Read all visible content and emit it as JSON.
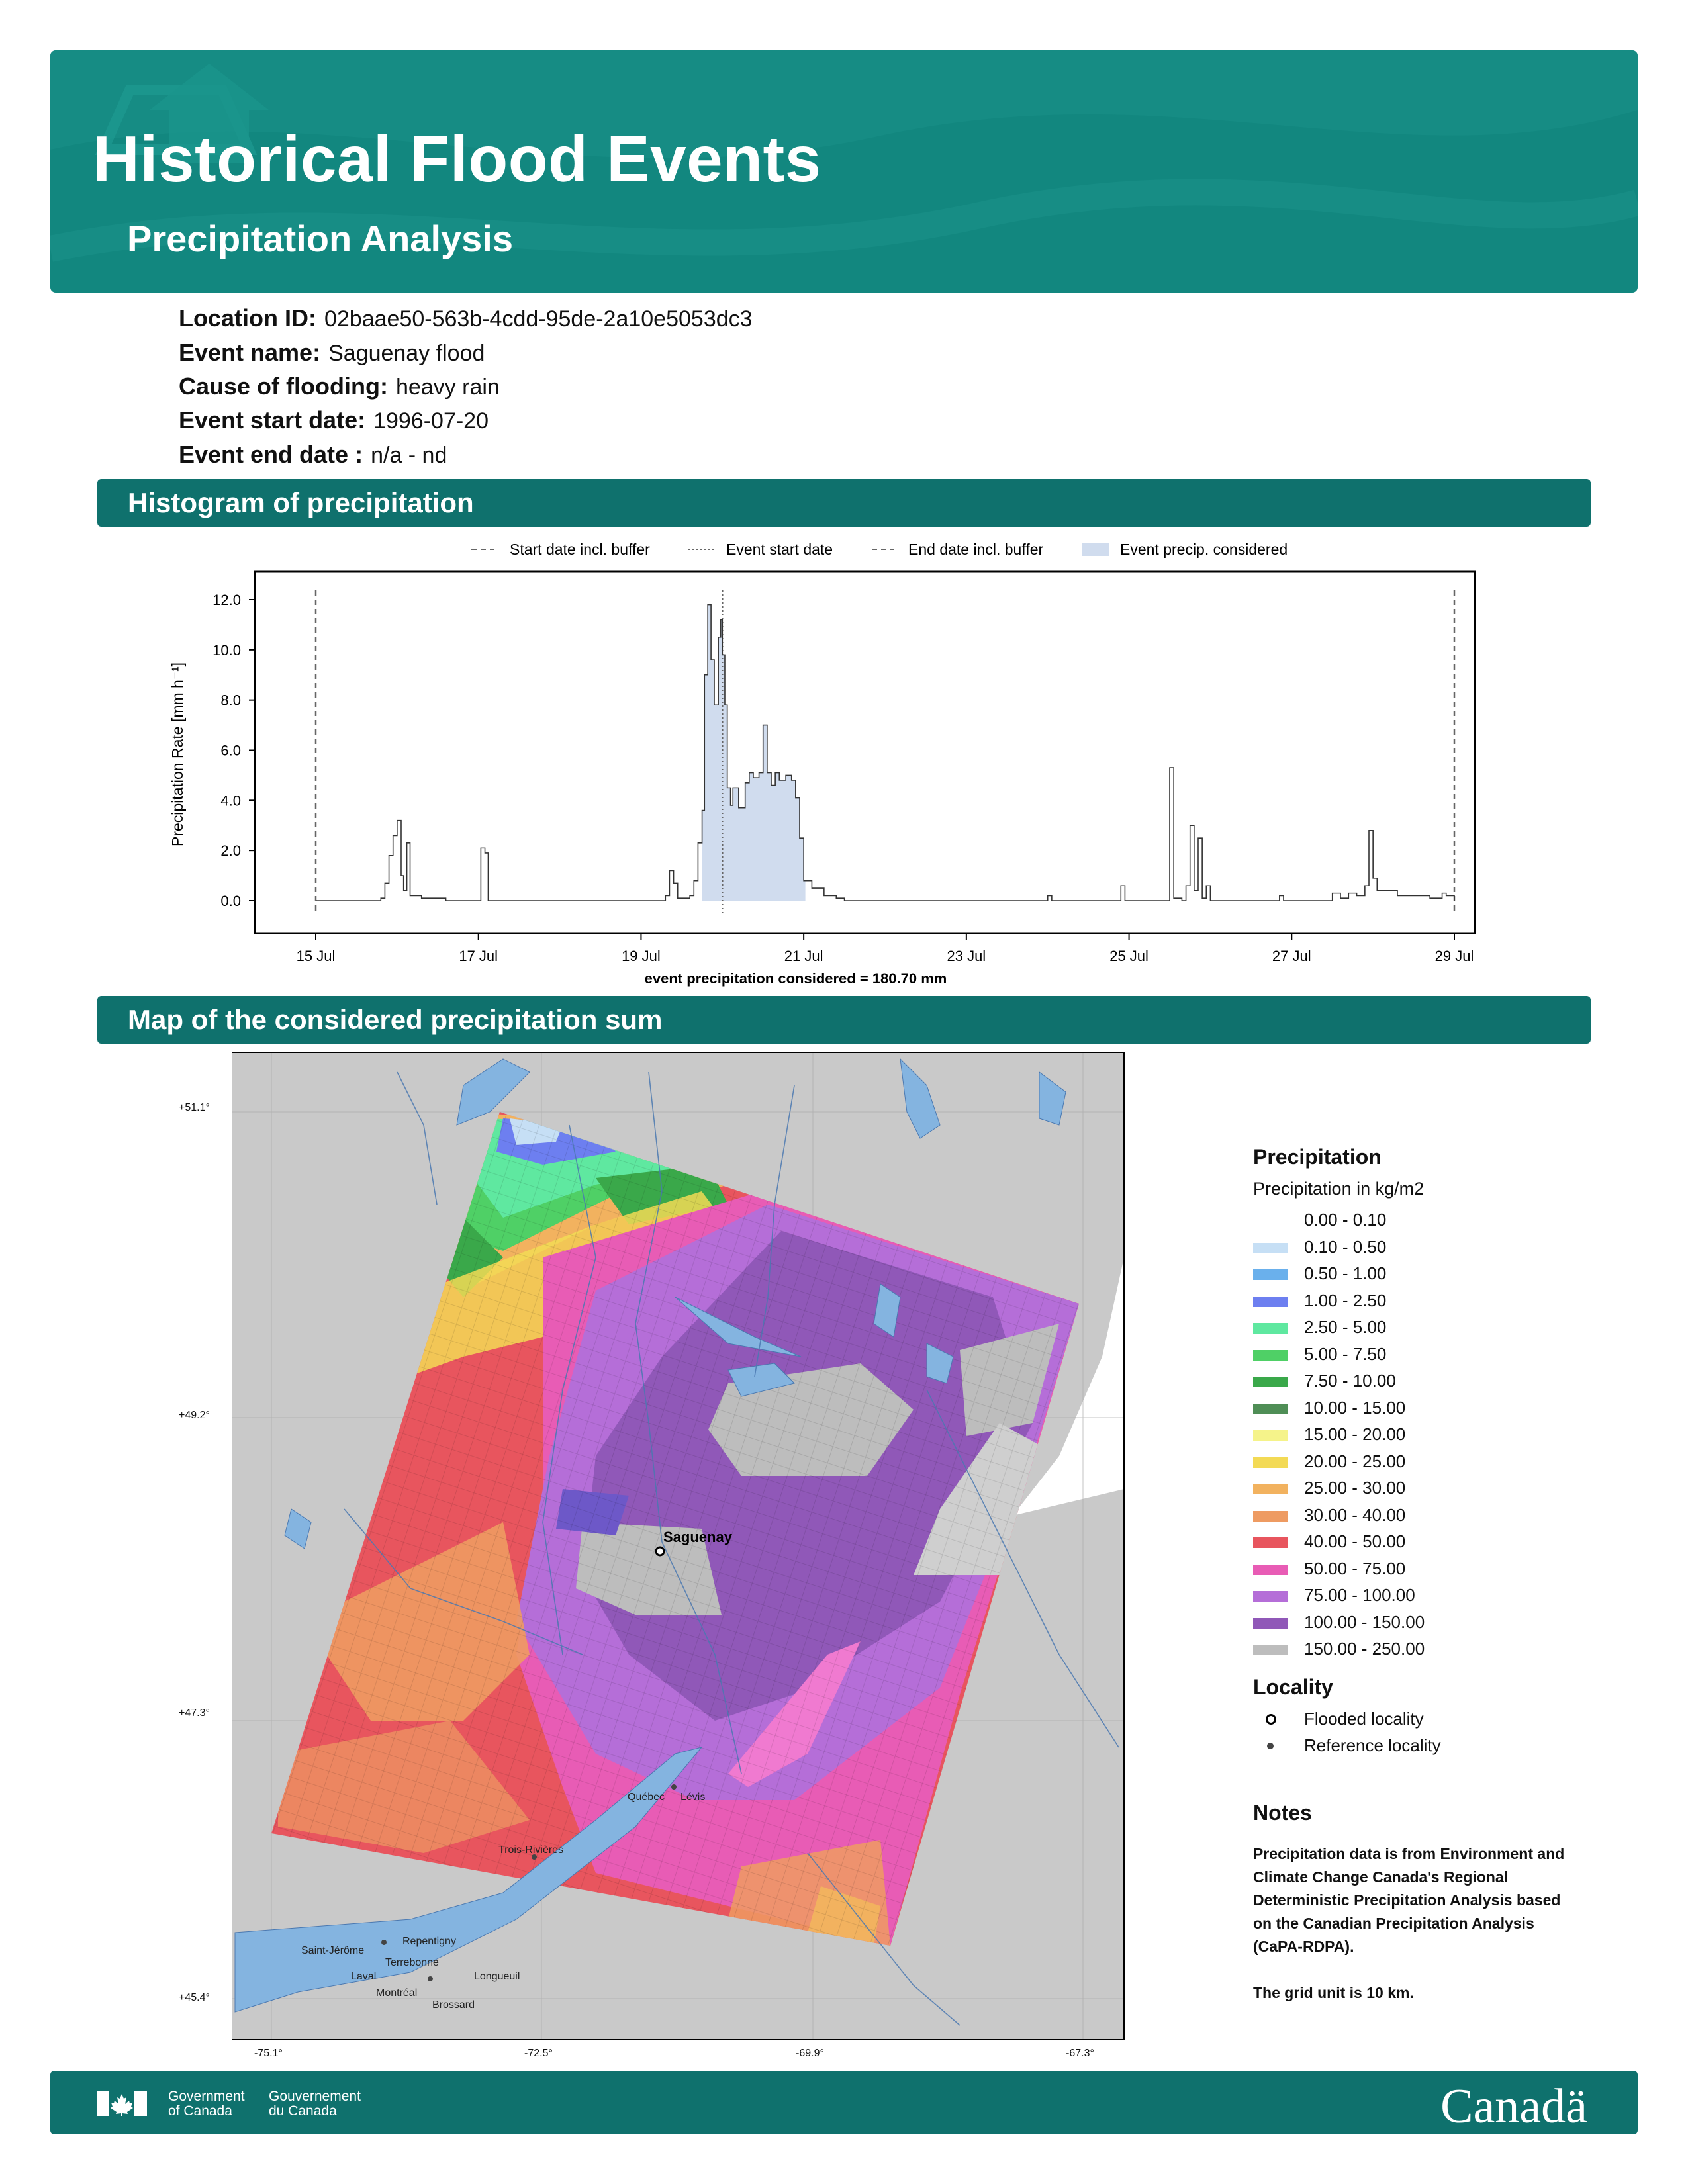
{
  "header": {
    "title": "Historical Flood Events",
    "subtitle": "Precipitation Analysis"
  },
  "info": [
    {
      "label": "Location ID:",
      "value": "02baae50-563b-4cdd-95de-2a10e5053dc3"
    },
    {
      "label": "Event name:",
      "value": "Saguenay flood"
    },
    {
      "label": "Cause of flooding:",
      "value": "heavy rain"
    },
    {
      "label": "Event start date:",
      "value": "1996-07-20"
    },
    {
      "label": "Event end date :",
      "value": "n/a - nd"
    }
  ],
  "sections": {
    "histogram": "Histogram of precipitation",
    "map": "Map of the considered precipitation sum"
  },
  "chart_data": {
    "type": "area",
    "ylabel": "Precipitation Rate [mm h⁻¹]",
    "xlabel": "event precipitation considered = 180.70 mm",
    "ylim": [
      -0.5,
      13
    ],
    "yticks": [
      "0.0",
      "2.0",
      "4.0",
      "6.0",
      "8.0",
      "10.0",
      "12.0"
    ],
    "xticks": [
      "15 Jul",
      "17 Jul",
      "19 Jul",
      "21 Jul",
      "23 Jul",
      "25 Jul",
      "27 Jul",
      "29 Jul"
    ],
    "legend": [
      "Start date incl. buffer",
      "Event start date",
      "End date incl. buffer",
      "Event precip. considered"
    ],
    "legend_position": "top-center",
    "start_buffer_day": 0,
    "event_start_day": 5,
    "end_buffer_day": 14,
    "considered_range_days": [
      4.75,
      6.02
    ],
    "series": [
      {
        "values": [
          [
            0,
            0
          ],
          [
            0.7,
            0
          ],
          [
            0.8,
            0.1
          ],
          [
            0.85,
            0.7
          ],
          [
            0.9,
            1.8
          ],
          [
            0.95,
            2.6
          ],
          [
            1.0,
            3.2
          ],
          [
            1.05,
            1.0
          ],
          [
            1.08,
            0.4
          ],
          [
            1.12,
            2.3
          ],
          [
            1.16,
            0.2
          ],
          [
            1.3,
            0.1
          ],
          [
            1.6,
            0
          ],
          [
            2.0,
            0
          ],
          [
            2.03,
            2.1
          ],
          [
            2.08,
            1.9
          ],
          [
            2.12,
            0
          ],
          [
            4.2,
            0
          ],
          [
            4.3,
            0.2
          ],
          [
            4.35,
            1.2
          ],
          [
            4.4,
            0.7
          ],
          [
            4.45,
            0.1
          ],
          [
            4.6,
            0.2
          ],
          [
            4.65,
            0.8
          ],
          [
            4.7,
            2.3
          ],
          [
            4.75,
            3.6
          ],
          [
            4.78,
            9.0
          ],
          [
            4.82,
            11.8
          ],
          [
            4.86,
            9.6
          ],
          [
            4.9,
            7.8
          ],
          [
            4.95,
            10.5
          ],
          [
            4.98,
            11.2
          ],
          [
            5.0,
            9.8
          ],
          [
            5.03,
            7.8
          ],
          [
            5.06,
            4.5
          ],
          [
            5.1,
            3.8
          ],
          [
            5.13,
            4.5
          ],
          [
            5.2,
            3.7
          ],
          [
            5.28,
            4.7
          ],
          [
            5.33,
            5.1
          ],
          [
            5.38,
            4.9
          ],
          [
            5.45,
            5.1
          ],
          [
            5.5,
            7.0
          ],
          [
            5.55,
            5.1
          ],
          [
            5.6,
            4.6
          ],
          [
            5.65,
            5.1
          ],
          [
            5.7,
            4.8
          ],
          [
            5.78,
            5.0
          ],
          [
            5.85,
            4.8
          ],
          [
            5.9,
            4.1
          ],
          [
            5.95,
            2.5
          ],
          [
            6.0,
            0.8
          ],
          [
            6.1,
            0.5
          ],
          [
            6.25,
            0.2
          ],
          [
            6.4,
            0.1
          ],
          [
            6.5,
            0
          ],
          [
            8.95,
            0
          ],
          [
            9.0,
            0.2
          ],
          [
            9.05,
            0
          ],
          [
            9.85,
            0
          ],
          [
            9.9,
            0.6
          ],
          [
            9.95,
            0
          ],
          [
            10.45,
            0
          ],
          [
            10.5,
            5.3
          ],
          [
            10.55,
            0.1
          ],
          [
            10.65,
            0
          ],
          [
            10.7,
            0.6
          ],
          [
            10.75,
            3.0
          ],
          [
            10.8,
            0.4
          ],
          [
            10.85,
            2.5
          ],
          [
            10.9,
            0.1
          ],
          [
            10.95,
            0.6
          ],
          [
            11.0,
            0
          ],
          [
            11.8,
            0
          ],
          [
            11.85,
            0.2
          ],
          [
            11.9,
            0
          ],
          [
            12.5,
            0.3
          ],
          [
            12.6,
            0.1
          ],
          [
            12.7,
            0.3
          ],
          [
            12.8,
            0.2
          ],
          [
            12.9,
            0.6
          ],
          [
            12.95,
            2.8
          ],
          [
            13.0,
            0.9
          ],
          [
            13.05,
            0.4
          ],
          [
            13.3,
            0.2
          ],
          [
            13.7,
            0.1
          ],
          [
            13.85,
            0.3
          ],
          [
            13.9,
            0.2
          ],
          [
            14,
            0
          ]
        ]
      }
    ]
  },
  "map": {
    "lat_labels": [
      "+51.1°",
      "+49.2°",
      "+47.3°",
      "+45.4°"
    ],
    "lon_labels": [
      "-75.1°",
      "-72.5°",
      "-69.9°",
      "-67.3°"
    ],
    "cities": [
      "Saguenay",
      "Québec",
      "Lévis",
      "Trois-Rivières",
      "Saint-Jérôme",
      "Repentigny",
      "Terrebonne",
      "Laval",
      "Longueuil",
      "Montréal",
      "Brossard"
    ]
  },
  "legend": {
    "precip_title": "Precipitation",
    "precip_unit": "Precipitation in kg/m2",
    "bins": [
      {
        "label": "0.00 - 0.10",
        "color": "#ffffff"
      },
      {
        "label": "0.10 - 0.50",
        "color": "#c6dff5"
      },
      {
        "label": "0.50 - 1.00",
        "color": "#6ab0ec"
      },
      {
        "label": "1.00 - 2.50",
        "color": "#6d7ff0"
      },
      {
        "label": "2.50 - 5.00",
        "color": "#5fe8a0"
      },
      {
        "label": "5.00 - 7.50",
        "color": "#4fd066"
      },
      {
        "label": "7.50 - 10.00",
        "color": "#3aa84a"
      },
      {
        "label": "10.00 - 15.00",
        "color": "#4f8e56"
      },
      {
        "label": "15.00 - 20.00",
        "color": "#f5f38a"
      },
      {
        "label": "20.00 - 25.00",
        "color": "#f3da55"
      },
      {
        "label": "25.00 - 30.00",
        "color": "#f2b25f"
      },
      {
        "label": "30.00 - 40.00",
        "color": "#ee9b62"
      },
      {
        "label": "40.00 - 50.00",
        "color": "#e8555e"
      },
      {
        "label": "50.00 - 75.00",
        "color": "#e85cb5"
      },
      {
        "label": "75.00 - 100.00",
        "color": "#b56ed8"
      },
      {
        "label": "100.00 - 150.00",
        "color": "#9058b8"
      },
      {
        "label": "150.00 - 250.00",
        "color": "#bdbdbd"
      }
    ],
    "locality_title": "Locality",
    "flooded": "Flooded locality",
    "reference": "Reference locality"
  },
  "notes": {
    "title": "Notes",
    "lines": [
      "Precipitation data is from Environment and",
      "Climate Change Canada's Regional",
      "Deterministic Precipitation Analysis based",
      "on the Canadian Precipitation Analysis",
      "(CaPA-RDPA).",
      "",
      "The grid unit is 10 km."
    ]
  },
  "footer": {
    "gov_en_1": "Government",
    "gov_en_2": "of Canada",
    "gov_fr_1": "Gouvernement",
    "gov_fr_2": "du Canada",
    "wordmark": "Canadä"
  }
}
